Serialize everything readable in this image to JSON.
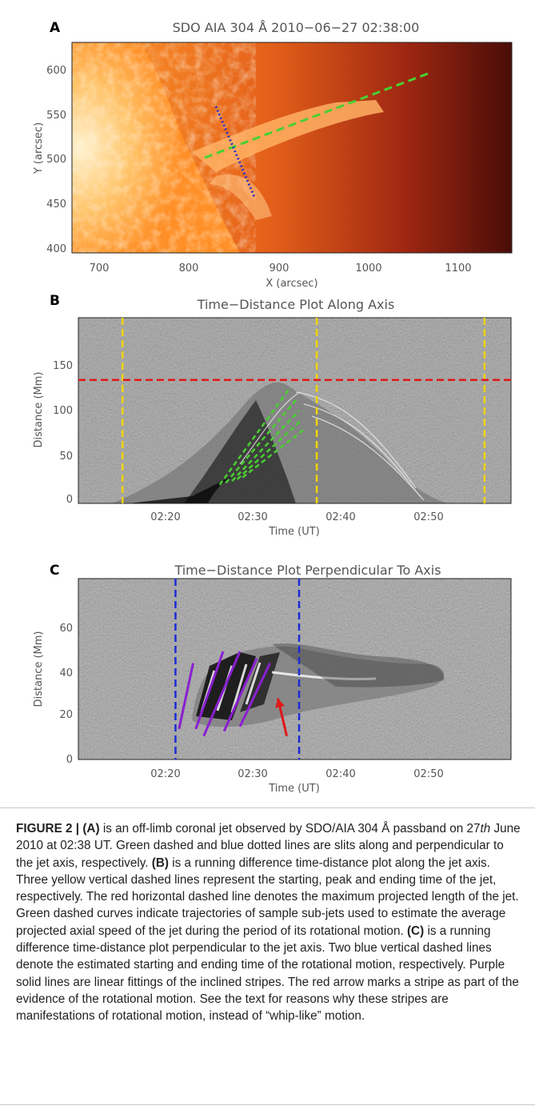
{
  "colors": {
    "panel_frame": "#222222",
    "jet_axis_slit": "#48d030",
    "perp_slit": "#2b2fc8",
    "yellow_time_lines": "#f0d400",
    "red_length_line": "#e01818",
    "green_trajectories": "#48d030",
    "blue_time_lines": "#1b2ad6",
    "purple_fits": "#8a1fd1",
    "red_arrow": "#e01818",
    "caption_rule": "#bfc9c4"
  },
  "panel_a": {
    "letter": "A",
    "title": "SDO AIA 304 Å 2010−06−27 02:38:00",
    "xlabel": "X (arcsec)",
    "ylabel": "Y (arcsec)",
    "xticks": [
      "700",
      "800",
      "900",
      "1000",
      "1100"
    ],
    "yticks": [
      "400",
      "450",
      "500",
      "550",
      "600"
    ]
  },
  "panel_b": {
    "letter": "B",
    "title": "Time−Distance Plot Along Axis",
    "xlabel": "Time (UT)",
    "ylabel": "Distance (Mm)",
    "xticks": [
      "02:20",
      "02:30",
      "02:40",
      "02:50"
    ],
    "yticks": [
      "0",
      "50",
      "100",
      "150"
    ]
  },
  "panel_c": {
    "letter": "C",
    "title": "Time−Distance Plot Perpendicular To Axis",
    "xlabel": "Time (UT)",
    "ylabel": "Distance (Mm)",
    "xticks": [
      "02:20",
      "02:30",
      "02:40",
      "02:50"
    ],
    "yticks": [
      "0",
      "20",
      "40",
      "60"
    ]
  },
  "chart_data": [
    {
      "type": "image",
      "panel": "A",
      "title": "SDO AIA 304 Å 2010−06−27 02:38:00",
      "xlabel": "X (arcsec)",
      "ylabel": "Y (arcsec)",
      "xlim": [
        670,
        1160
      ],
      "ylim": [
        393,
        633
      ],
      "grid": false,
      "overlays": [
        {
          "style": "green dashed line",
          "x": [
            800,
            1065
          ],
          "y": [
            498,
            592
          ]
        },
        {
          "style": "blue dotted line",
          "x": [
            826,
            866
          ],
          "y": [
            558,
            477
          ]
        }
      ]
    },
    {
      "type": "image",
      "panel": "B",
      "title": "Time−Distance Plot Along Axis",
      "xlabel": "Time (UT)",
      "ylabel": "Distance (Mm)",
      "xlim": [
        "02:11",
        "03:00"
      ],
      "ylim": [
        0,
        200
      ],
      "grid": false,
      "vertical_lines": {
        "style": "yellow dashed",
        "x": [
          "02:16",
          "02:38",
          "02:57"
        ]
      },
      "horizontal_lines": {
        "style": "red dashed",
        "y": [
          133
        ]
      },
      "trajectories": [
        {
          "x": [
            "02:27",
            "02:35"
          ],
          "y": [
            20,
            125
          ]
        },
        {
          "x": [
            "02:27.7",
            "02:35.7"
          ],
          "y": [
            22,
            112
          ]
        },
        {
          "x": [
            "02:28.4",
            "02:36"
          ],
          "y": [
            24,
            100
          ]
        },
        {
          "x": [
            "02:29",
            "02:36.3"
          ],
          "y": [
            26,
            90
          ]
        },
        {
          "x": [
            "02:29.6",
            "02:36.6"
          ],
          "y": [
            28,
            80
          ]
        }
      ]
    },
    {
      "type": "image",
      "panel": "C",
      "title": "Time−Distance Plot Perpendicular To Axis",
      "xlabel": "Time (UT)",
      "ylabel": "Distance (Mm)",
      "xlim": [
        "02:11",
        "03:00"
      ],
      "ylim": [
        0,
        77
      ],
      "grid": false,
      "vertical_lines": {
        "style": "blue dashed",
        "x": [
          "02:22",
          "02:36"
        ]
      },
      "fits": [
        {
          "x": [
            "02:22.4",
            "02:24"
          ],
          "y": [
            13,
            41
          ]
        },
        {
          "x": [
            "02:24.3",
            "02:27.4"
          ],
          "y": [
            13,
            46
          ]
        },
        {
          "x": [
            "02:25.2",
            "02:29.3"
          ],
          "y": [
            10,
            46
          ]
        },
        {
          "x": [
            "02:27.5",
            "02:31.2"
          ],
          "y": [
            12,
            43
          ]
        },
        {
          "x": [
            "02:29.3",
            "02:32.7"
          ],
          "y": [
            14,
            41
          ]
        }
      ],
      "arrow": {
        "from": {
          "x": "02:34.6",
          "y": 10
        },
        "to": {
          "x": "02:33.6",
          "y": 26
        }
      }
    }
  ],
  "caption": {
    "label": "FIGURE 2 |",
    "a_tag": "(A)",
    "a_text1": " is an off-limb coronal jet observed by SDO/AIA 304 Å passband on 27",
    "a_th": "th",
    "a_text2": " June 2010 at 02:38 UT. Green dashed and blue dotted lines are slits along and perpendicular to the jet axis, respectively. ",
    "b_tag": "(B)",
    "b_text": " is a running difference time-distance plot along the jet axis. Three yellow vertical dashed lines represent the starting, peak and ending time of the jet, respectively. The red horizontal dashed line denotes the maximum projected length of the jet. Green dashed curves indicate trajectories of sample sub-jets used to estimate the average projected axial speed of the jet during the period of its rotational motion. ",
    "c_tag": "(C)",
    "c_text": " is a running difference time-distance plot perpendicular to the jet axis. Two blue vertical dashed lines denote the estimated starting and ending time of the rotational motion, respectively. Purple solid lines are linear fittings of the inclined stripes. The red arrow marks a stripe as part of the evidence of the rotational motion. See the text for reasons why these stripes are manifestations of rotational motion, instead of “whip-like” motion."
  }
}
